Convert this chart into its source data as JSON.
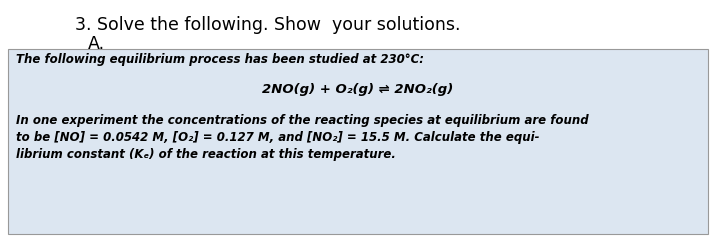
{
  "title_line1": "3. Solve the following. Show  your solutions.",
  "title_line2": "A.",
  "box_bg_color": "#dce6f1",
  "box_text_line1": "The following equilibrium process has been studied at 230°C:",
  "box_equation": "2NO(g) + O₂(g) ⇌ 2NO₂(g)",
  "box_text_line3": "In one experiment the concentrations of the reacting species at equilibrium are found",
  "box_text_line4": "to be [NO] = 0.0542 M, [O₂] = 0.127 M, and [NO₂] = 15.5 M. Calculate the equi-",
  "box_text_line5": "librium constant (Kₑ) of the reaction at this temperature.",
  "bg_color": "#ffffff",
  "font_size_title": 12.5,
  "font_size_body": 8.5,
  "font_size_equation": 9.5
}
